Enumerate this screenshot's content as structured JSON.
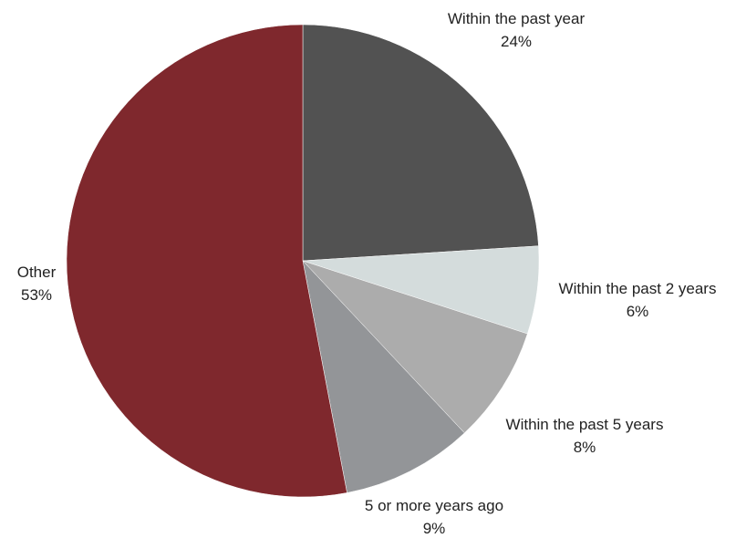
{
  "chart_data": {
    "type": "pie",
    "start_angle_deg": 0,
    "direction": "clockwise",
    "slices": [
      {
        "label": "Within the past year",
        "value": 24,
        "display": "24%",
        "color": "#525252"
      },
      {
        "label": "Within the past 2 years",
        "value": 6,
        "display": "6%",
        "color": "#d4dcdc"
      },
      {
        "label": "Within the past 5 years",
        "value": 8,
        "display": "8%",
        "color": "#acacac"
      },
      {
        "label": "5 or more years ago",
        "value": 9,
        "display": "9%",
        "color": "#939598"
      },
      {
        "label": "Other",
        "value": 53,
        "display": "53%",
        "color": "#7f282d"
      }
    ]
  }
}
